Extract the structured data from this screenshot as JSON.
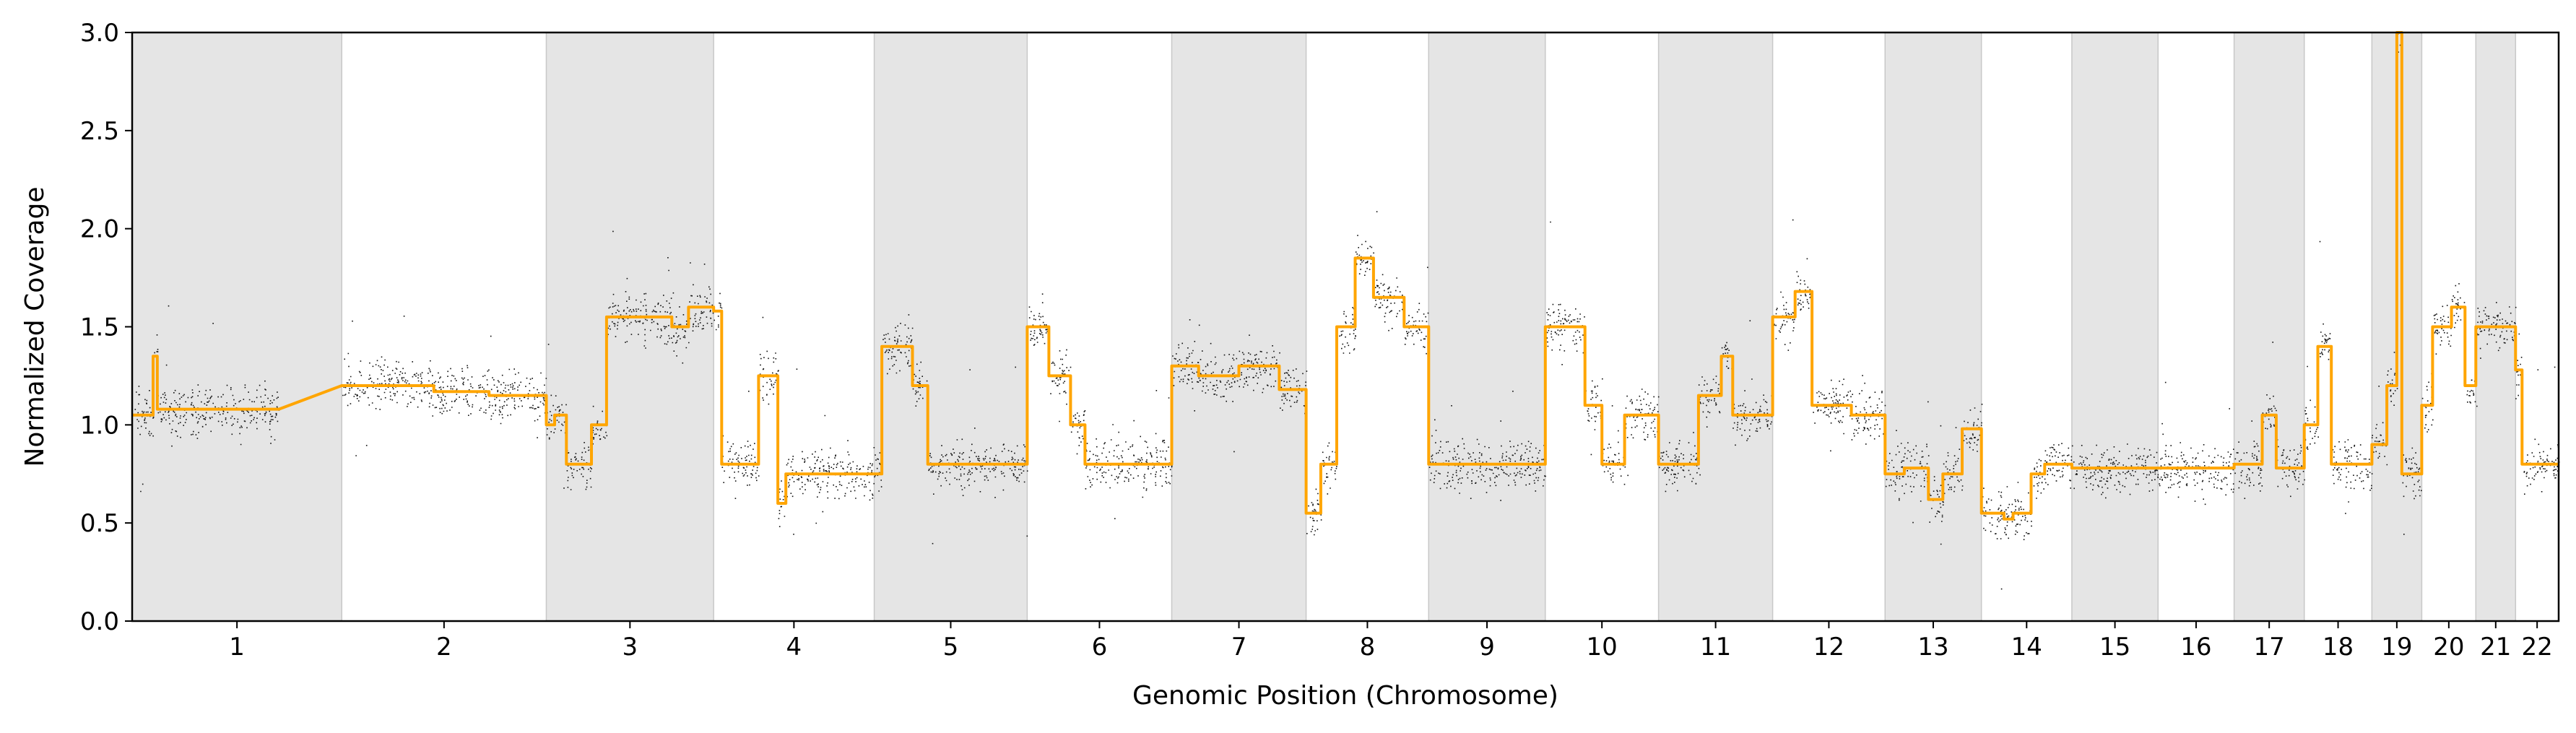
{
  "chart_data": {
    "type": "scatter",
    "title": "",
    "xlabel": "Genomic Position (Chromosome)",
    "ylabel": "Normalized Coverage",
    "ylim": [
      0.0,
      3.0
    ],
    "yticks": [
      "0.0",
      "0.5",
      "1.0",
      "1.5",
      "2.0",
      "2.5",
      "3.0"
    ],
    "grid": false,
    "legend": "none",
    "colors": {
      "points": "#111111",
      "segments": "#FFA500",
      "shade": "#e5e5e5",
      "shade_border": "#c8c8c8",
      "axis": "#000000"
    },
    "series": [
      {
        "kind": "points",
        "description_free": true
      },
      {
        "kind": "segmentation-line"
      }
    ],
    "chromosomes": [
      {
        "label": "1",
        "length": 248,
        "shaded": true,
        "segments": [
          [
            0.0,
            0.1,
            1.05
          ],
          [
            0.1,
            0.12,
            1.35
          ],
          [
            0.12,
            0.3,
            1.08
          ],
          [
            0.3,
            0.7,
            1.08
          ]
        ]
      },
      {
        "label": "2",
        "length": 242,
        "shaded": false,
        "segments": [
          [
            0.0,
            0.45,
            1.2
          ],
          [
            0.45,
            0.72,
            1.17
          ],
          [
            0.72,
            1.0,
            1.15
          ]
        ]
      },
      {
        "label": "3",
        "length": 198,
        "shaded": true,
        "segments": [
          [
            0.0,
            0.05,
            1.0
          ],
          [
            0.05,
            0.12,
            1.05
          ],
          [
            0.12,
            0.27,
            0.8
          ],
          [
            0.27,
            0.36,
            1.0
          ],
          [
            0.36,
            0.75,
            1.55
          ],
          [
            0.75,
            0.85,
            1.5
          ],
          [
            0.85,
            1.0,
            1.6
          ]
        ]
      },
      {
        "label": "4",
        "length": 190,
        "shaded": false,
        "segments": [
          [
            0.0,
            0.05,
            1.58
          ],
          [
            0.05,
            0.28,
            0.8
          ],
          [
            0.28,
            0.4,
            1.25
          ],
          [
            0.4,
            0.45,
            0.6
          ],
          [
            0.45,
            1.0,
            0.75
          ]
        ]
      },
      {
        "label": "5",
        "length": 181,
        "shaded": true,
        "segments": [
          [
            0.0,
            0.05,
            0.75
          ],
          [
            0.05,
            0.25,
            1.4
          ],
          [
            0.25,
            0.35,
            1.2
          ],
          [
            0.35,
            1.0,
            0.8
          ]
        ]
      },
      {
        "label": "6",
        "length": 171,
        "shaded": false,
        "segments": [
          [
            0.0,
            0.15,
            1.5
          ],
          [
            0.15,
            0.3,
            1.25
          ],
          [
            0.3,
            0.4,
            1.0
          ],
          [
            0.4,
            1.0,
            0.8
          ]
        ]
      },
      {
        "label": "7",
        "length": 159,
        "shaded": true,
        "segments": [
          [
            0.0,
            0.2,
            1.3
          ],
          [
            0.2,
            0.5,
            1.25
          ],
          [
            0.5,
            0.8,
            1.3
          ],
          [
            0.8,
            1.0,
            1.18
          ]
        ]
      },
      {
        "label": "8",
        "length": 145,
        "shaded": false,
        "segments": [
          [
            0.0,
            0.12,
            0.55
          ],
          [
            0.12,
            0.25,
            0.8
          ],
          [
            0.25,
            0.4,
            1.5
          ],
          [
            0.4,
            0.55,
            1.85
          ],
          [
            0.55,
            0.8,
            1.65
          ],
          [
            0.8,
            1.0,
            1.5
          ]
        ]
      },
      {
        "label": "9",
        "length": 138,
        "shaded": true,
        "segments": [
          [
            0.0,
            1.0,
            0.8
          ]
        ]
      },
      {
        "label": "10",
        "length": 134,
        "shaded": false,
        "segments": [
          [
            0.0,
            0.35,
            1.5
          ],
          [
            0.35,
            0.5,
            1.1
          ],
          [
            0.5,
            0.7,
            0.8
          ],
          [
            0.7,
            1.0,
            1.05
          ]
        ]
      },
      {
        "label": "11",
        "length": 135,
        "shaded": true,
        "segments": [
          [
            0.0,
            0.35,
            0.8
          ],
          [
            0.35,
            0.55,
            1.15
          ],
          [
            0.55,
            0.65,
            1.35
          ],
          [
            0.65,
            1.0,
            1.05
          ]
        ]
      },
      {
        "label": "12",
        "length": 133,
        "shaded": false,
        "segments": [
          [
            0.0,
            0.2,
            1.55
          ],
          [
            0.2,
            0.35,
            1.68
          ],
          [
            0.35,
            0.7,
            1.1
          ],
          [
            0.7,
            1.0,
            1.05
          ]
        ]
      },
      {
        "label": "13",
        "length": 114,
        "shaded": true,
        "segments": [
          [
            0.0,
            0.2,
            0.75
          ],
          [
            0.2,
            0.45,
            0.78
          ],
          [
            0.45,
            0.6,
            0.62
          ],
          [
            0.6,
            0.8,
            0.75
          ],
          [
            0.8,
            1.0,
            0.98
          ]
        ]
      },
      {
        "label": "14",
        "length": 107,
        "shaded": false,
        "segments": [
          [
            0.0,
            0.25,
            0.55
          ],
          [
            0.25,
            0.35,
            0.52
          ],
          [
            0.35,
            0.55,
            0.55
          ],
          [
            0.55,
            0.7,
            0.75
          ],
          [
            0.7,
            1.0,
            0.8
          ]
        ]
      },
      {
        "label": "15",
        "length": 102,
        "shaded": true,
        "segments": [
          [
            0.0,
            1.0,
            0.78
          ]
        ]
      },
      {
        "label": "16",
        "length": 90,
        "shaded": false,
        "segments": [
          [
            0.0,
            1.0,
            0.78
          ]
        ]
      },
      {
        "label": "17",
        "length": 83,
        "shaded": true,
        "segments": [
          [
            0.0,
            0.4,
            0.8
          ],
          [
            0.4,
            0.6,
            1.05
          ],
          [
            0.6,
            1.0,
            0.78
          ]
        ]
      },
      {
        "label": "18",
        "length": 80,
        "shaded": false,
        "segments": [
          [
            0.0,
            0.2,
            1.0
          ],
          [
            0.2,
            0.4,
            1.4
          ],
          [
            0.4,
            1.0,
            0.8
          ]
        ]
      },
      {
        "label": "19",
        "length": 59,
        "shaded": true,
        "segments": [
          [
            0.0,
            0.3,
            0.9
          ],
          [
            0.3,
            0.5,
            1.2
          ],
          [
            0.5,
            0.6,
            3.0
          ],
          [
            0.6,
            1.0,
            0.75
          ]
        ]
      },
      {
        "label": "20",
        "length": 64,
        "shaded": false,
        "segments": [
          [
            0.0,
            0.2,
            1.1
          ],
          [
            0.2,
            0.55,
            1.5
          ],
          [
            0.55,
            0.8,
            1.6
          ],
          [
            0.8,
            1.0,
            1.2
          ]
        ]
      },
      {
        "label": "21",
        "length": 47,
        "shaded": true,
        "segments": [
          [
            0.0,
            0.3,
            1.5
          ],
          [
            0.3,
            1.0,
            1.5
          ]
        ]
      },
      {
        "label": "22",
        "length": 51,
        "shaded": false,
        "segments": [
          [
            0.0,
            0.15,
            1.28
          ],
          [
            0.15,
            1.0,
            0.8
          ]
        ]
      }
    ]
  }
}
